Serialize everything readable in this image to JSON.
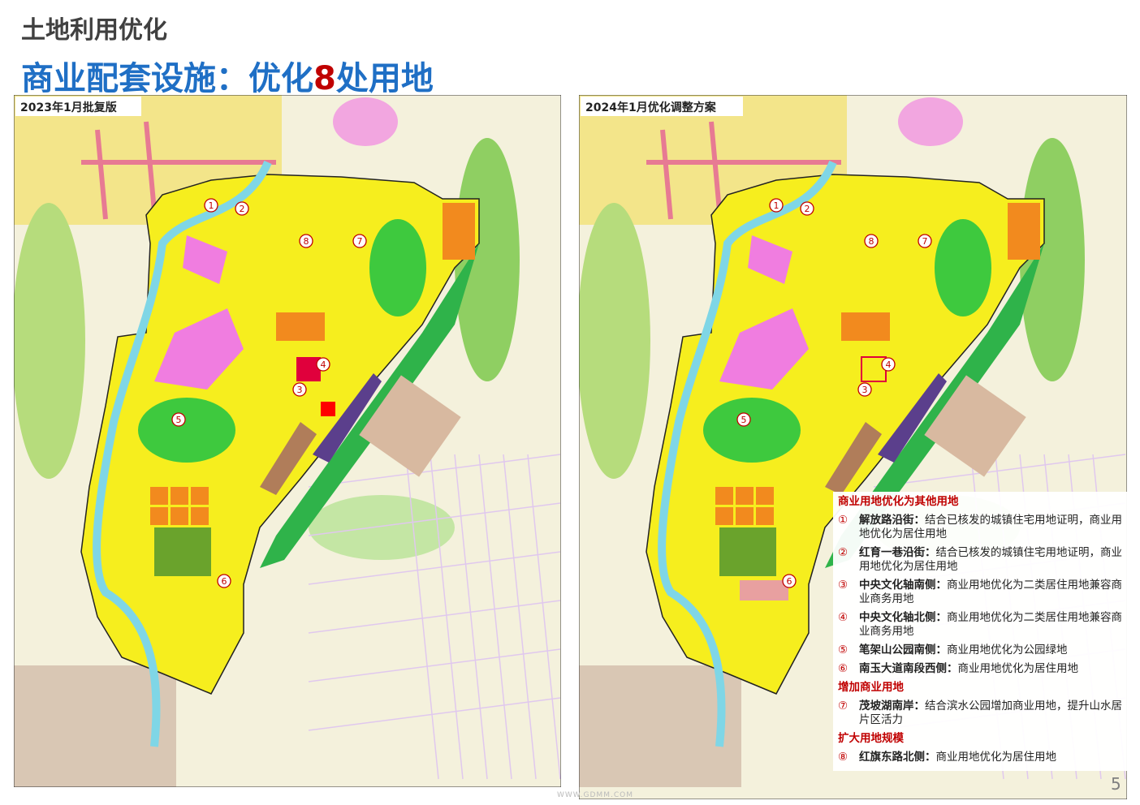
{
  "header": {
    "section": "土地利用优化",
    "title_prefix": "商业配套设施：优化",
    "title_number": "8",
    "title_suffix": "处用地"
  },
  "maps": [
    {
      "label": "2023年1月批复版",
      "markers": [
        "1",
        "2",
        "3",
        "4",
        "5",
        "6",
        "7",
        "8"
      ]
    },
    {
      "label": "2024年1月优化调整方案",
      "markers": [
        "1",
        "2",
        "3",
        "4",
        "5",
        "6",
        "7",
        "8"
      ]
    }
  ],
  "legend": {
    "sections": [
      {
        "heading": "商业用地优化为其他用地",
        "items": [
          {
            "num": "①",
            "name": "解放路沿街：",
            "desc": "结合已核发的城镇住宅用地证明，商业用地优化为居住用地"
          },
          {
            "num": "②",
            "name": "红育一巷沿街：",
            "desc": "结合已核发的城镇住宅用地证明，商业用地优化为居住用地"
          },
          {
            "num": "③",
            "name": "中央文化轴南侧：",
            "desc": "商业用地优化为二类居住用地兼容商业商务用地"
          },
          {
            "num": "④",
            "name": "中央文化轴北侧：",
            "desc": "商业用地优化为二类居住用地兼容商业商务用地"
          },
          {
            "num": "⑤",
            "name": "笔架山公园南侧：",
            "desc": "商业用地优化为公园绿地"
          },
          {
            "num": "⑥",
            "name": "南玉大道南段西侧：",
            "desc": "商业用地优化为居住用地"
          }
        ]
      },
      {
        "heading": "增加商业用地",
        "items": [
          {
            "num": "⑦",
            "name": "茂坡湖南岸：",
            "desc": "结合滨水公园增加商业用地，提升山水居片区活力"
          }
        ]
      },
      {
        "heading": "扩大用地规模",
        "items": [
          {
            "num": "⑧",
            "name": "红旗东路北侧：",
            "desc": "商业用地优化为居住用地"
          }
        ]
      }
    ]
  },
  "page_number": "5",
  "watermark": "WWW.GDMM.COM"
}
